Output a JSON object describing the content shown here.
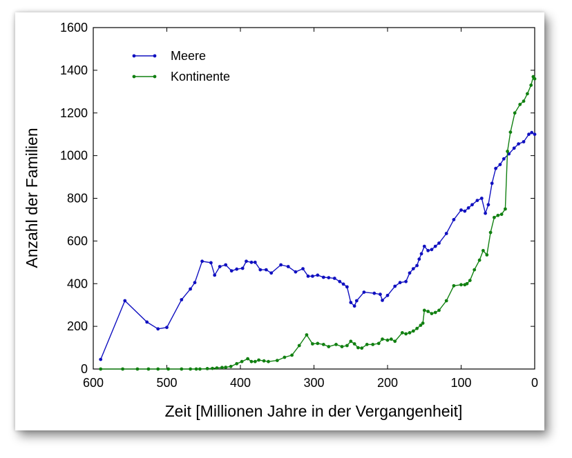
{
  "chart_data": {
    "type": "line",
    "xlabel": "Zeit [Millionen Jahre in der Vergangenheit]",
    "ylabel": "Anzahl der Familien",
    "xlim": [
      600,
      0
    ],
    "ylim": [
      0,
      1600
    ],
    "x_reversed": true,
    "xticks": [
      "600",
      "500",
      "400",
      "300",
      "200",
      "100",
      "0"
    ],
    "yticks": [
      "0",
      "200",
      "400",
      "600",
      "800",
      "1000",
      "1200",
      "1400",
      "1600"
    ],
    "grid": false,
    "legend_position": "top-left",
    "series": [
      {
        "name": "Meere",
        "color": "#1010c0",
        "points": [
          [
            590,
            45
          ],
          [
            557,
            320
          ],
          [
            527,
            220
          ],
          [
            512,
            188
          ],
          [
            500,
            195
          ],
          [
            480,
            325
          ],
          [
            468,
            375
          ],
          [
            462,
            405
          ],
          [
            452,
            505
          ],
          [
            440,
            498
          ],
          [
            435,
            440
          ],
          [
            428,
            480
          ],
          [
            420,
            488
          ],
          [
            412,
            460
          ],
          [
            405,
            468
          ],
          [
            397,
            472
          ],
          [
            392,
            505
          ],
          [
            385,
            500
          ],
          [
            380,
            500
          ],
          [
            373,
            465
          ],
          [
            365,
            465
          ],
          [
            358,
            450
          ],
          [
            345,
            488
          ],
          [
            335,
            480
          ],
          [
            325,
            455
          ],
          [
            315,
            470
          ],
          [
            308,
            435
          ],
          [
            302,
            435
          ],
          [
            295,
            440
          ],
          [
            287,
            430
          ],
          [
            280,
            428
          ],
          [
            272,
            425
          ],
          [
            265,
            410
          ],
          [
            260,
            398
          ],
          [
            255,
            385
          ],
          [
            250,
            312
          ],
          [
            245,
            295
          ],
          [
            242,
            320
          ],
          [
            232,
            360
          ],
          [
            218,
            355
          ],
          [
            210,
            350
          ],
          [
            207,
            322
          ],
          [
            200,
            345
          ],
          [
            190,
            388
          ],
          [
            183,
            405
          ],
          [
            175,
            410
          ],
          [
            170,
            450
          ],
          [
            165,
            470
          ],
          [
            160,
            485
          ],
          [
            157,
            515
          ],
          [
            154,
            540
          ],
          [
            150,
            575
          ],
          [
            145,
            555
          ],
          [
            140,
            560
          ],
          [
            135,
            575
          ],
          [
            130,
            590
          ],
          [
            120,
            635
          ],
          [
            110,
            700
          ],
          [
            100,
            745
          ],
          [
            95,
            740
          ],
          [
            90,
            755
          ],
          [
            85,
            770
          ],
          [
            78,
            790
          ],
          [
            72,
            800
          ],
          [
            67,
            730
          ],
          [
            63,
            770
          ],
          [
            58,
            870
          ],
          [
            53,
            940
          ],
          [
            47,
            958
          ],
          [
            42,
            985
          ],
          [
            35,
            1008
          ],
          [
            28,
            1035
          ],
          [
            22,
            1055
          ],
          [
            15,
            1065
          ],
          [
            8,
            1100
          ],
          [
            4,
            1108
          ],
          [
            0,
            1100
          ]
        ]
      },
      {
        "name": "Kontinente",
        "color": "#118011",
        "points": [
          [
            590,
            0
          ],
          [
            560,
            0
          ],
          [
            540,
            0
          ],
          [
            525,
            0
          ],
          [
            512,
            0
          ],
          [
            498,
            0
          ],
          [
            480,
            0
          ],
          [
            468,
            0
          ],
          [
            460,
            0
          ],
          [
            455,
            0
          ],
          [
            445,
            2
          ],
          [
            438,
            3
          ],
          [
            432,
            5
          ],
          [
            425,
            7
          ],
          [
            420,
            8
          ],
          [
            413,
            12
          ],
          [
            405,
            25
          ],
          [
            398,
            35
          ],
          [
            390,
            48
          ],
          [
            385,
            35
          ],
          [
            380,
            35
          ],
          [
            375,
            42
          ],
          [
            368,
            38
          ],
          [
            362,
            35
          ],
          [
            350,
            40
          ],
          [
            340,
            55
          ],
          [
            330,
            65
          ],
          [
            320,
            110
          ],
          [
            310,
            160
          ],
          [
            302,
            118
          ],
          [
            295,
            120
          ],
          [
            287,
            115
          ],
          [
            280,
            105
          ],
          [
            270,
            115
          ],
          [
            262,
            105
          ],
          [
            255,
            110
          ],
          [
            250,
            130
          ],
          [
            245,
            118
          ],
          [
            240,
            100
          ],
          [
            235,
            98
          ],
          [
            228,
            115
          ],
          [
            220,
            115
          ],
          [
            212,
            120
          ],
          [
            207,
            140
          ],
          [
            200,
            135
          ],
          [
            195,
            140
          ],
          [
            190,
            130
          ],
          [
            180,
            170
          ],
          [
            175,
            165
          ],
          [
            170,
            170
          ],
          [
            165,
            178
          ],
          [
            160,
            190
          ],
          [
            155,
            205
          ],
          [
            152,
            215
          ],
          [
            150,
            275
          ],
          [
            145,
            270
          ],
          [
            140,
            260
          ],
          [
            135,
            265
          ],
          [
            130,
            275
          ],
          [
            120,
            320
          ],
          [
            110,
            390
          ],
          [
            100,
            395
          ],
          [
            95,
            395
          ],
          [
            92,
            400
          ],
          [
            88,
            415
          ],
          [
            82,
            465
          ],
          [
            75,
            510
          ],
          [
            70,
            555
          ],
          [
            65,
            535
          ],
          [
            60,
            640
          ],
          [
            55,
            710
          ],
          [
            50,
            720
          ],
          [
            45,
            725
          ],
          [
            40,
            750
          ],
          [
            37,
            1020
          ],
          [
            33,
            1110
          ],
          [
            27,
            1200
          ],
          [
            20,
            1240
          ],
          [
            15,
            1255
          ],
          [
            10,
            1290
          ],
          [
            5,
            1330
          ],
          [
            2,
            1370
          ],
          [
            0,
            1360
          ]
        ]
      }
    ]
  }
}
